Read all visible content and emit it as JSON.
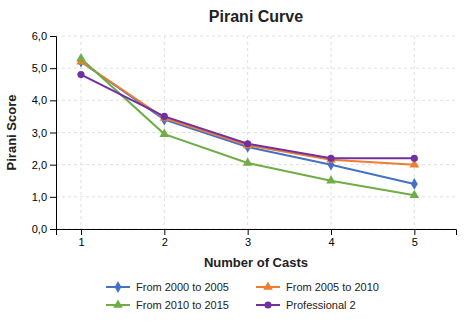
{
  "chart_data": {
    "type": "line",
    "title": "Pirani Curve",
    "x_label": "Number of Casts",
    "y_label": "Pirani Score",
    "x": [
      1,
      2,
      3,
      4,
      5
    ],
    "series": [
      {
        "name": "From 2000 to 2005",
        "color": "#4472C4",
        "marker": "diamond",
        "values": [
          5.2,
          3.4,
          2.55,
          2.0,
          1.4
        ]
      },
      {
        "name": "From 2005 to 2010",
        "color": "#ED7D31",
        "marker": "triangle",
        "values": [
          5.2,
          3.45,
          2.6,
          2.15,
          2.0
        ]
      },
      {
        "name": "From 2010 to 2015",
        "color": "#70AD47",
        "marker": "triangle",
        "values": [
          5.3,
          2.95,
          2.05,
          1.5,
          1.05
        ]
      },
      {
        "name": "Professional 2",
        "color": "#7030A0",
        "marker": "circle",
        "values": [
          4.8,
          3.5,
          2.65,
          2.2,
          2.2
        ]
      }
    ],
    "xlim": [
      0.7,
      5.5
    ],
    "xticks": [
      1,
      2,
      3,
      4,
      5
    ],
    "ylim": [
      0,
      6.0
    ],
    "yticks": [
      {
        "value": 0.0,
        "label": "0,0"
      },
      {
        "value": 1.0,
        "label": "1,0"
      },
      {
        "value": 2.0,
        "label": "2,0"
      },
      {
        "value": 3.0,
        "label": "3,0"
      },
      {
        "value": 4.0,
        "label": "4,0"
      },
      {
        "value": 5.0,
        "label": "5,0"
      },
      {
        "value": 6.0,
        "label": "6,0"
      }
    ],
    "grid": true,
    "legend": "bottom"
  }
}
